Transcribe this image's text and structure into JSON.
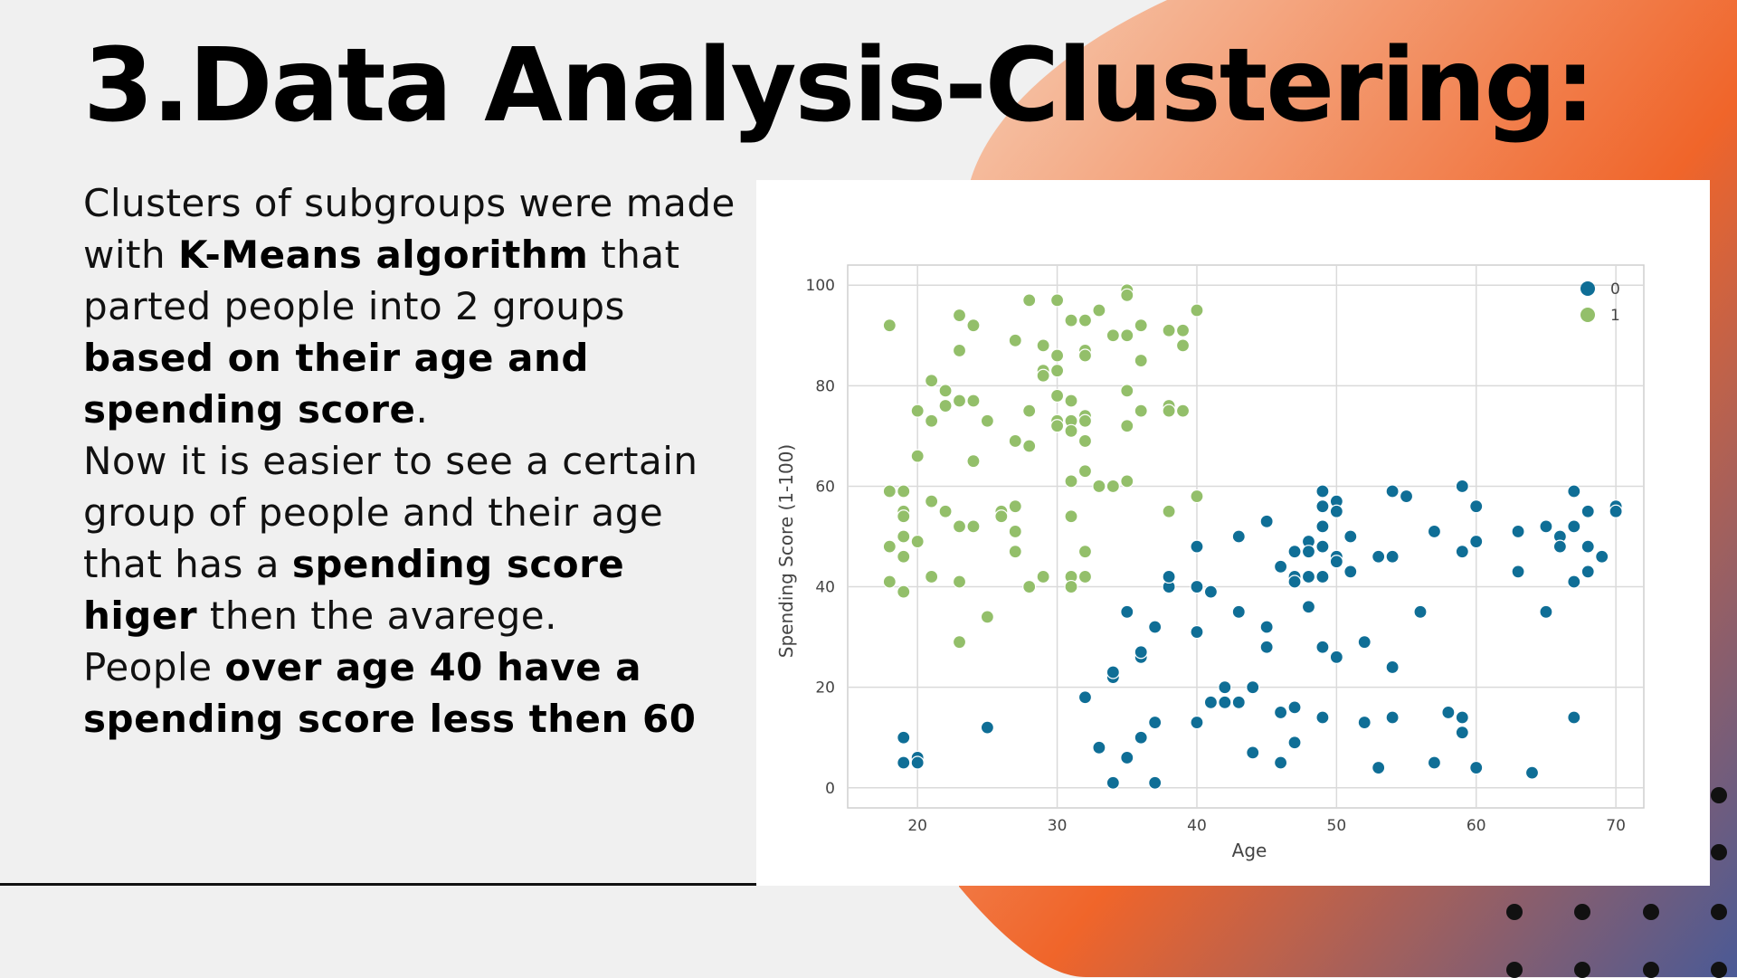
{
  "slide": {
    "title": "3.Data Analysis-Clustering:",
    "paragraphs": [
      [
        {
          "t": "Clusters of subgroups were made with ",
          "b": false
        },
        {
          "t": "K-Means algorithm",
          "b": true
        },
        {
          "t": " that parted people into 2 groups ",
          "b": false
        },
        {
          "t": "based on their age and spending score",
          "b": true
        },
        {
          "t": ".",
          "b": false
        }
      ],
      [
        {
          "t": "Now it is easier to see a certain group of people and their age that has a ",
          "b": false
        },
        {
          "t": "spending score higer",
          "b": true
        },
        {
          "t": " then the avarege.",
          "b": false
        }
      ],
      [
        {
          "t": "People ",
          "b": false
        },
        {
          "t": "over age 40 have a spending score less then 60",
          "b": true
        }
      ]
    ]
  },
  "colors": {
    "cluster_0": "#0f6e96",
    "cluster_1": "#93bf6a",
    "blob_start": "#f6cdb4",
    "blob_mid": "#f0652a",
    "blob_end": "#4a5a96"
  },
  "chart_data": {
    "type": "scatter",
    "xlabel": "Age",
    "ylabel": "Spending Score (1-100)",
    "xlim": [
      15,
      72
    ],
    "ylim": [
      -4,
      104
    ],
    "xticks": [
      20,
      30,
      40,
      50,
      60,
      70
    ],
    "yticks": [
      0,
      20,
      40,
      60,
      80,
      100
    ],
    "grid": true,
    "legend_position": "top-right",
    "series": [
      {
        "name": "0",
        "points": [
          [
            19,
            10
          ],
          [
            19,
            5
          ],
          [
            20,
            6
          ],
          [
            20,
            5
          ],
          [
            25,
            12
          ],
          [
            32,
            18
          ],
          [
            33,
            8
          ],
          [
            34,
            1
          ],
          [
            34,
            22
          ],
          [
            34,
            23
          ],
          [
            35,
            35
          ],
          [
            35,
            6
          ],
          [
            36,
            26
          ],
          [
            36,
            27
          ],
          [
            36,
            10
          ],
          [
            37,
            32
          ],
          [
            37,
            13
          ],
          [
            37,
            1
          ],
          [
            38,
            40
          ],
          [
            38,
            42
          ],
          [
            40,
            48
          ],
          [
            40,
            40
          ],
          [
            40,
            31
          ],
          [
            40,
            13
          ],
          [
            41,
            39
          ],
          [
            41,
            17
          ],
          [
            42,
            20
          ],
          [
            42,
            17
          ],
          [
            43,
            17
          ],
          [
            43,
            35
          ],
          [
            43,
            50
          ],
          [
            44,
            20
          ],
          [
            44,
            7
          ],
          [
            45,
            32
          ],
          [
            45,
            53
          ],
          [
            45,
            28
          ],
          [
            46,
            44
          ],
          [
            46,
            15
          ],
          [
            46,
            5
          ],
          [
            47,
            42
          ],
          [
            47,
            47
          ],
          [
            47,
            41
          ],
          [
            47,
            16
          ],
          [
            47,
            9
          ],
          [
            48,
            49
          ],
          [
            48,
            47
          ],
          [
            48,
            42
          ],
          [
            48,
            36
          ],
          [
            49,
            59
          ],
          [
            49,
            56
          ],
          [
            49,
            52
          ],
          [
            49,
            48
          ],
          [
            49,
            42
          ],
          [
            49,
            28
          ],
          [
            49,
            14
          ],
          [
            50,
            57
          ],
          [
            50,
            55
          ],
          [
            50,
            46
          ],
          [
            50,
            45
          ],
          [
            50,
            26
          ],
          [
            51,
            50
          ],
          [
            51,
            43
          ],
          [
            52,
            29
          ],
          [
            52,
            13
          ],
          [
            53,
            46
          ],
          [
            53,
            4
          ],
          [
            54,
            59
          ],
          [
            54,
            46
          ],
          [
            54,
            24
          ],
          [
            54,
            14
          ],
          [
            55,
            58
          ],
          [
            56,
            35
          ],
          [
            57,
            51
          ],
          [
            57,
            5
          ],
          [
            58,
            15
          ],
          [
            59,
            60
          ],
          [
            59,
            47
          ],
          [
            59,
            14
          ],
          [
            59,
            11
          ],
          [
            60,
            56
          ],
          [
            60,
            49
          ],
          [
            60,
            4
          ],
          [
            63,
            51
          ],
          [
            63,
            43
          ],
          [
            64,
            3
          ],
          [
            65,
            52
          ],
          [
            65,
            35
          ],
          [
            66,
            50
          ],
          [
            66,
            48
          ],
          [
            67,
            59
          ],
          [
            67,
            52
          ],
          [
            67,
            41
          ],
          [
            67,
            14
          ],
          [
            68,
            55
          ],
          [
            68,
            48
          ],
          [
            68,
            43
          ],
          [
            69,
            46
          ],
          [
            70,
            56
          ],
          [
            70,
            55
          ]
        ]
      },
      {
        "name": "1",
        "points": [
          [
            18,
            92
          ],
          [
            18,
            59
          ],
          [
            18,
            48
          ],
          [
            18,
            41
          ],
          [
            19,
            59
          ],
          [
            19,
            55
          ],
          [
            19,
            54
          ],
          [
            19,
            50
          ],
          [
            19,
            46
          ],
          [
            19,
            39
          ],
          [
            20,
            75
          ],
          [
            20,
            66
          ],
          [
            20,
            49
          ],
          [
            21,
            81
          ],
          [
            21,
            73
          ],
          [
            21,
            57
          ],
          [
            21,
            42
          ],
          [
            22,
            79
          ],
          [
            22,
            76
          ],
          [
            22,
            55
          ],
          [
            23,
            94
          ],
          [
            23,
            87
          ],
          [
            23,
            77
          ],
          [
            23,
            52
          ],
          [
            23,
            41
          ],
          [
            23,
            29
          ],
          [
            24,
            92
          ],
          [
            24,
            77
          ],
          [
            24,
            65
          ],
          [
            24,
            52
          ],
          [
            25,
            73
          ],
          [
            25,
            34
          ],
          [
            26,
            55
          ],
          [
            26,
            54
          ],
          [
            27,
            89
          ],
          [
            27,
            69
          ],
          [
            27,
            56
          ],
          [
            27,
            51
          ],
          [
            27,
            47
          ],
          [
            28,
            97
          ],
          [
            28,
            75
          ],
          [
            28,
            68
          ],
          [
            28,
            40
          ],
          [
            29,
            88
          ],
          [
            29,
            83
          ],
          [
            29,
            82
          ],
          [
            29,
            42
          ],
          [
            30,
            97
          ],
          [
            30,
            86
          ],
          [
            30,
            83
          ],
          [
            30,
            78
          ],
          [
            30,
            73
          ],
          [
            30,
            72
          ],
          [
            31,
            93
          ],
          [
            31,
            77
          ],
          [
            31,
            73
          ],
          [
            31,
            71
          ],
          [
            31,
            61
          ],
          [
            31,
            54
          ],
          [
            31,
            42
          ],
          [
            31,
            40
          ],
          [
            32,
            93
          ],
          [
            32,
            87
          ],
          [
            32,
            86
          ],
          [
            32,
            74
          ],
          [
            32,
            73
          ],
          [
            32,
            69
          ],
          [
            32,
            63
          ],
          [
            32,
            47
          ],
          [
            32,
            42
          ],
          [
            33,
            95
          ],
          [
            33,
            60
          ],
          [
            34,
            90
          ],
          [
            34,
            60
          ],
          [
            35,
            99
          ],
          [
            35,
            98
          ],
          [
            35,
            90
          ],
          [
            35,
            79
          ],
          [
            35,
            72
          ],
          [
            35,
            61
          ],
          [
            36,
            92
          ],
          [
            36,
            85
          ],
          [
            36,
            75
          ],
          [
            38,
            91
          ],
          [
            38,
            76
          ],
          [
            38,
            75
          ],
          [
            38,
            55
          ],
          [
            39,
            91
          ],
          [
            39,
            88
          ],
          [
            39,
            75
          ],
          [
            40,
            95
          ],
          [
            40,
            58
          ]
        ]
      }
    ]
  }
}
